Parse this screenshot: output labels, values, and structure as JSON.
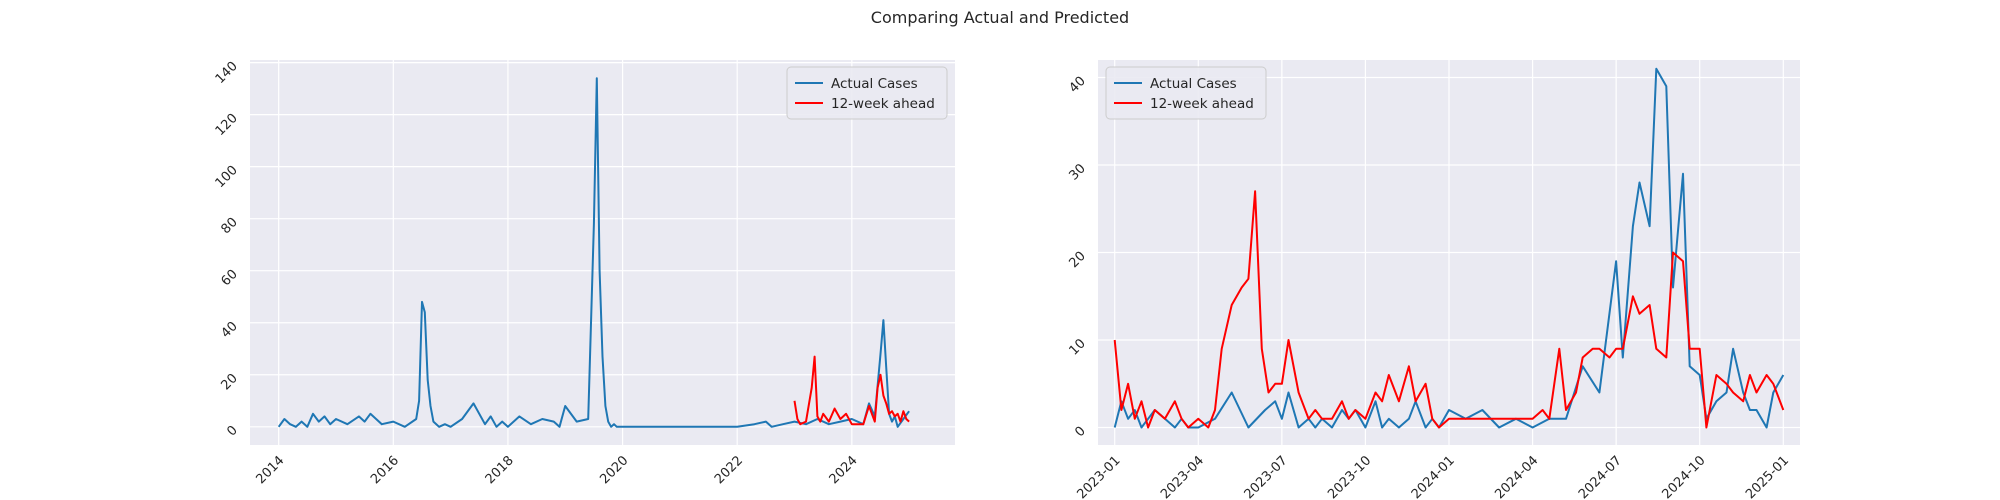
{
  "title": "Comparing Actual and Predicted",
  "colors": {
    "actual": "#1f77b4",
    "predicted": "#ff0000",
    "panel_bg": "#eaeaf2",
    "grid": "#ffffff"
  },
  "chart_data": [
    {
      "type": "line",
      "title": "",
      "xlabel": "",
      "ylabel": "",
      "grid": true,
      "legend": "top-right",
      "xlim": [
        2013.5,
        2025.8
      ],
      "ylim": [
        -7,
        141
      ],
      "xticks": [
        2014,
        2016,
        2018,
        2020,
        2022,
        2024
      ],
      "xtick_labels": [
        "2014",
        "2016",
        "2018",
        "2020",
        "2022",
        "2024"
      ],
      "yticks": [
        0,
        20,
        40,
        60,
        80,
        100,
        120,
        140
      ],
      "ytick_labels": [
        "0",
        "20",
        "40",
        "60",
        "80",
        "100",
        "120",
        "140"
      ],
      "series": [
        {
          "name": "Actual Cases",
          "color": "#1f77b4",
          "x": [
            2014.0,
            2014.1,
            2014.2,
            2014.3,
            2014.4,
            2014.5,
            2014.6,
            2014.7,
            2014.8,
            2014.9,
            2015.0,
            2015.2,
            2015.4,
            2015.5,
            2015.6,
            2015.7,
            2015.8,
            2016.0,
            2016.2,
            2016.4,
            2016.45,
            2016.5,
            2016.55,
            2016.6,
            2016.65,
            2016.7,
            2016.75,
            2016.8,
            2016.9,
            2017.0,
            2017.2,
            2017.4,
            2017.6,
            2017.7,
            2017.8,
            2017.9,
            2018.0,
            2018.2,
            2018.4,
            2018.6,
            2018.8,
            2018.9,
            2019.0,
            2019.2,
            2019.4,
            2019.5,
            2019.55,
            2019.6,
            2019.65,
            2019.7,
            2019.75,
            2019.8,
            2019.85,
            2019.9,
            2020.0,
            2020.5,
            2021.0,
            2021.5,
            2022.0,
            2022.3,
            2022.5,
            2022.6,
            2022.8,
            2023.0,
            2023.2,
            2023.4,
            2023.6,
            2023.8,
            2024.0,
            2024.2,
            2024.3,
            2024.4,
            2024.5,
            2024.55,
            2024.6,
            2024.65,
            2024.7,
            2024.75,
            2024.8,
            2024.9,
            2025.0
          ],
          "y": [
            0,
            3,
            1,
            0,
            2,
            0,
            5,
            2,
            4,
            1,
            3,
            1,
            4,
            2,
            5,
            3,
            1,
            2,
            0,
            3,
            10,
            48,
            44,
            18,
            8,
            2,
            1,
            0,
            1,
            0,
            3,
            9,
            1,
            4,
            0,
            2,
            0,
            4,
            1,
            3,
            2,
            0,
            8,
            2,
            3,
            78,
            134,
            60,
            27,
            8,
            2,
            0,
            1,
            0,
            0,
            0,
            0,
            0,
            0,
            1,
            2,
            0,
            1,
            2,
            1,
            3,
            1,
            2,
            3,
            1,
            9,
            4,
            28,
            41,
            23,
            5,
            2,
            4,
            0,
            3,
            6
          ]
        },
        {
          "name": "12-week ahead",
          "color": "#ff0000",
          "x": [
            2023.0,
            2023.05,
            2023.1,
            2023.2,
            2023.3,
            2023.35,
            2023.4,
            2023.45,
            2023.5,
            2023.6,
            2023.7,
            2023.8,
            2023.9,
            2024.0,
            2024.1,
            2024.2,
            2024.3,
            2024.4,
            2024.45,
            2024.5,
            2024.55,
            2024.6,
            2024.65,
            2024.7,
            2024.75,
            2024.8,
            2024.85,
            2024.9,
            2024.95,
            2025.0
          ],
          "y": [
            10,
            3,
            1,
            2,
            15,
            27,
            4,
            2,
            5,
            2,
            7,
            3,
            5,
            1,
            1,
            1,
            8,
            2,
            15,
            20,
            12,
            9,
            5,
            6,
            4,
            5,
            2,
            6,
            3,
            2
          ]
        }
      ]
    },
    {
      "type": "line",
      "title": "",
      "xlabel": "",
      "ylabel": "",
      "grid": true,
      "legend": "top-left",
      "xlim": [
        2022.95,
        2025.05
      ],
      "ylim": [
        -2,
        42
      ],
      "xticks": [
        2023.0,
        2023.25,
        2023.5,
        2023.75,
        2024.0,
        2024.25,
        2024.5,
        2024.75,
        2025.0
      ],
      "xtick_labels": [
        "2023-01",
        "2023-04",
        "2023-07",
        "2023-10",
        "2024-01",
        "2024-04",
        "2024-07",
        "2024-10",
        "2025-01"
      ],
      "yticks": [
        0,
        10,
        20,
        30,
        40
      ],
      "ytick_labels": [
        "0",
        "10",
        "20",
        "30",
        "40"
      ],
      "series": [
        {
          "name": "Actual Cases",
          "color": "#1f77b4",
          "x": [
            2023.0,
            2023.02,
            2023.04,
            2023.06,
            2023.08,
            2023.1,
            2023.12,
            2023.15,
            2023.18,
            2023.2,
            2023.22,
            2023.25,
            2023.3,
            2023.35,
            2023.4,
            2023.45,
            2023.48,
            2023.5,
            2023.52,
            2023.55,
            2023.58,
            2023.6,
            2023.62,
            2023.65,
            2023.68,
            2023.7,
            2023.72,
            2023.75,
            2023.78,
            2023.8,
            2023.82,
            2023.85,
            2023.88,
            2023.9,
            2023.93,
            2023.95,
            2023.97,
            2024.0,
            2024.05,
            2024.1,
            2024.15,
            2024.2,
            2024.25,
            2024.3,
            2024.35,
            2024.4,
            2024.45,
            2024.5,
            2024.52,
            2024.55,
            2024.57,
            2024.6,
            2024.62,
            2024.65,
            2024.67,
            2024.7,
            2024.72,
            2024.75,
            2024.77,
            2024.8,
            2024.83,
            2024.85,
            2024.88,
            2024.9,
            2024.92,
            2024.95,
            2024.97,
            2025.0
          ],
          "y": [
            0,
            3,
            1,
            2,
            0,
            1,
            2,
            1,
            0,
            1,
            0,
            0,
            1,
            4,
            0,
            2,
            3,
            1,
            4,
            0,
            1,
            0,
            1,
            0,
            2,
            1,
            2,
            0,
            3,
            0,
            1,
            0,
            1,
            3,
            0,
            1,
            0,
            2,
            1,
            2,
            0,
            1,
            0,
            1,
            1,
            7,
            4,
            19,
            8,
            23,
            28,
            23,
            41,
            39,
            16,
            29,
            7,
            6,
            1,
            3,
            4,
            9,
            4,
            2,
            2,
            0,
            4,
            6
          ]
        },
        {
          "name": "12-week ahead",
          "color": "#ff0000",
          "x": [
            2023.0,
            2023.02,
            2023.04,
            2023.06,
            2023.08,
            2023.1,
            2023.12,
            2023.15,
            2023.18,
            2023.2,
            2023.22,
            2023.25,
            2023.28,
            2023.3,
            2023.32,
            2023.35,
            2023.38,
            2023.4,
            2023.42,
            2023.44,
            2023.46,
            2023.48,
            2023.5,
            2023.52,
            2023.55,
            2023.58,
            2023.6,
            2023.62,
            2023.65,
            2023.68,
            2023.7,
            2023.72,
            2023.75,
            2023.78,
            2023.8,
            2023.82,
            2023.85,
            2023.88,
            2023.9,
            2023.93,
            2023.95,
            2023.97,
            2024.0,
            2024.05,
            2024.1,
            2024.15,
            2024.2,
            2024.25,
            2024.28,
            2024.3,
            2024.33,
            2024.35,
            2024.38,
            2024.4,
            2024.43,
            2024.45,
            2024.48,
            2024.5,
            2024.52,
            2024.55,
            2024.57,
            2024.6,
            2024.62,
            2024.65,
            2024.67,
            2024.7,
            2024.72,
            2024.75,
            2024.77,
            2024.8,
            2024.83,
            2024.85,
            2024.88,
            2024.9,
            2024.92,
            2024.95,
            2024.97,
            2025.0
          ],
          "y": [
            10,
            2,
            5,
            1,
            3,
            0,
            2,
            1,
            3,
            1,
            0,
            1,
            0,
            2,
            9,
            14,
            16,
            17,
            27,
            9,
            4,
            5,
            5,
            10,
            4,
            1,
            2,
            1,
            1,
            3,
            1,
            2,
            1,
            4,
            3,
            6,
            3,
            7,
            3,
            5,
            1,
            0,
            1,
            1,
            1,
            1,
            1,
            1,
            2,
            1,
            9,
            2,
            4,
            8,
            9,
            9,
            8,
            9,
            9,
            15,
            13,
            14,
            9,
            8,
            20,
            19,
            9,
            9,
            0,
            6,
            5,
            4,
            3,
            6,
            4,
            6,
            5,
            2
          ]
        }
      ]
    }
  ]
}
